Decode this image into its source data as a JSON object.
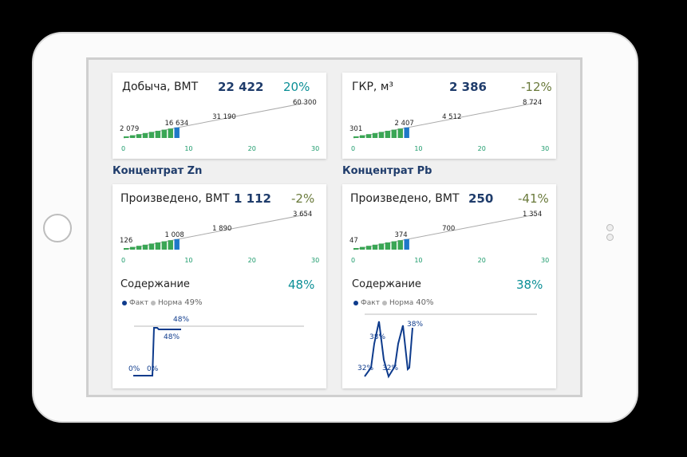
{
  "cards": [
    {
      "title": "Добыча, ВМТ",
      "value": "22 422",
      "pct": "20%",
      "pct_color": "#0b8f96",
      "labels": [
        "2 079",
        "16 634",
        "31 190",
        "60 300"
      ],
      "ticks": [
        "0",
        "10",
        "20",
        "30"
      ]
    },
    {
      "title": "ГКР, м³",
      "value": "2 386",
      "pct": "-12%",
      "pct_color": "#6a7a3b",
      "labels": [
        "301",
        "2 407",
        "4 512",
        "8 724"
      ],
      "ticks": [
        "0",
        "10",
        "20",
        "30"
      ]
    },
    {
      "title": "Произведено, ВМТ",
      "value": "1 112",
      "pct": "-2%",
      "pct_color": "#6a7a3b",
      "labels": [
        "126",
        "1 008",
        "1 890",
        "3 654"
      ],
      "ticks": [
        "0",
        "10",
        "20",
        "30"
      ]
    },
    {
      "title": "Произведено, ВМТ",
      "value": "250",
      "pct": "-41%",
      "pct_color": "#6a7a3b",
      "labels": [
        "47",
        "374",
        "700",
        "1 354"
      ],
      "ticks": [
        "0",
        "10",
        "20",
        "30"
      ]
    }
  ],
  "sections": [
    "Концентрат Zn",
    "Концентрат Pb"
  ],
  "content": [
    {
      "title": "Содержание",
      "pct": "48%",
      "fact": "Факт",
      "norm": "Норма",
      "norm_value": "49%",
      "labels": [
        "48%",
        "48%",
        "0%",
        "0%"
      ]
    },
    {
      "title": "Содержание",
      "pct": "38%",
      "fact": "Факт",
      "norm": "Норма",
      "norm_value": "40%",
      "labels": [
        "38%",
        "38%",
        "32%",
        "32%"
      ]
    }
  ],
  "colors": {
    "bar": "#3aa655",
    "bar_current": "#1f78c8",
    "fact": "#0e3b8c",
    "norm": "#bbbbbb",
    "trend": "#aaaaaa",
    "tick": "#1a9a6a"
  }
}
